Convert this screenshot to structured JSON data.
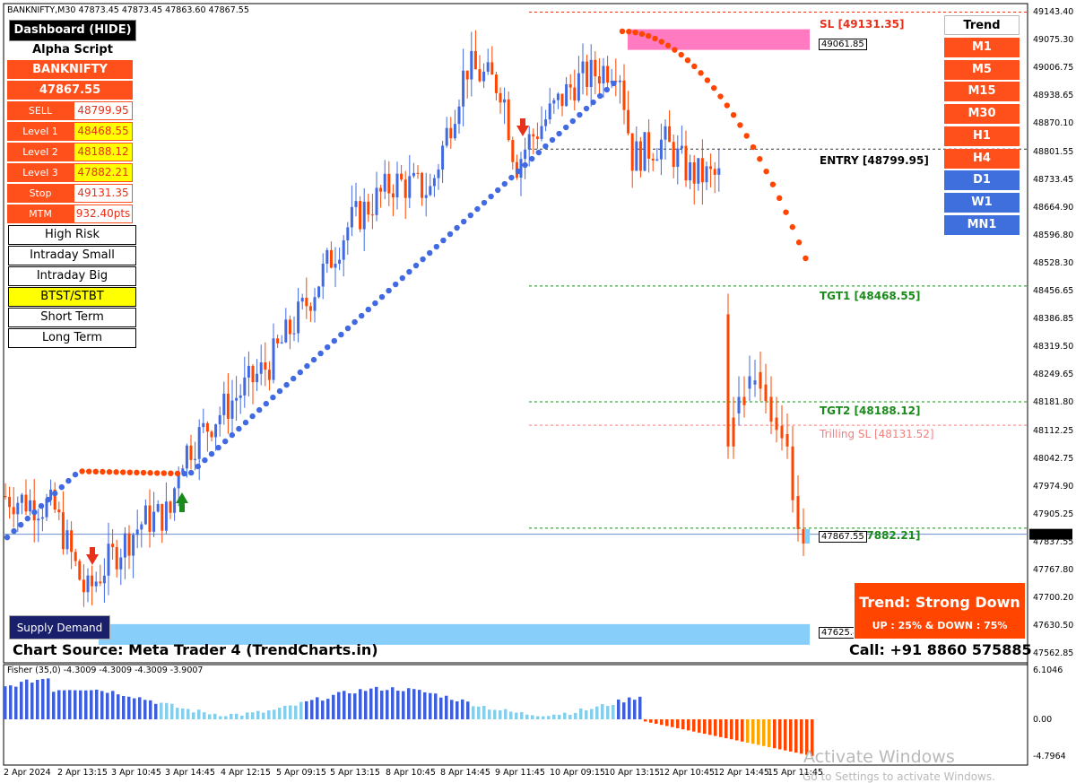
{
  "header": {
    "title": "BANKNIFTY,M30  47873.45 47873.45 47863.60 47867.55"
  },
  "dashboard": {
    "hide_button": "Dashboard (HIDE)",
    "brand": "Alpha Script",
    "symbol": "BANKNIFTY",
    "price": "47867.55",
    "rows": [
      {
        "label": "SELL",
        "value": "48799.95",
        "highlight": false
      },
      {
        "label": "Level 1",
        "value": "48468.55",
        "highlight": true
      },
      {
        "label": "Level 2",
        "value": "48188.12",
        "highlight": true
      },
      {
        "label": "Level 3",
        "value": "47882.21",
        "highlight": true
      },
      {
        "label": "Stop",
        "value": "49131.35",
        "highlight": false
      },
      {
        "label": "MTM",
        "value": "932.40pts",
        "highlight": false
      }
    ],
    "modes": [
      {
        "label": "High Risk",
        "active": false
      },
      {
        "label": "Intraday Small",
        "active": false
      },
      {
        "label": "Intraday Big",
        "active": false
      },
      {
        "label": "BTST/STBT",
        "active": true
      },
      {
        "label": "Short Term",
        "active": false
      },
      {
        "label": "Long Term",
        "active": false
      }
    ],
    "supply_demand": "Supply Demand"
  },
  "trend_panel": {
    "title": "Trend",
    "timeframes": [
      {
        "label": "M1",
        "state": "down"
      },
      {
        "label": "M5",
        "state": "down"
      },
      {
        "label": "M15",
        "state": "down"
      },
      {
        "label": "M30",
        "state": "down"
      },
      {
        "label": "H1",
        "state": "down"
      },
      {
        "label": "H4",
        "state": "down"
      },
      {
        "label": "D1",
        "state": "up"
      },
      {
        "label": "W1",
        "state": "up"
      },
      {
        "label": "MN1",
        "state": "up"
      }
    ]
  },
  "levels": {
    "sl": "SL [49131.35]",
    "entry": "ENTRY [48799.95]",
    "tgt1": "TGT1 [48468.55]",
    "tgt2": "TGT2 [48188.12]",
    "trailing_sl": "Trilling SL [48131.52]",
    "tgt3": "TGT3 [47882.21]",
    "supply_zone": "49061.85",
    "demand_zone": "47625.80",
    "current_tag": "47867.55"
  },
  "trend_box": {
    "title": "Trend: Strong Down",
    "detail": "UP : 25% & DOWN : 75%"
  },
  "footer": {
    "source": "Chart Source: Meta Trader 4 (TrendCharts.in)",
    "call": "Call: +91 8860 575885"
  },
  "watermark": {
    "line1": "Activate Windows",
    "line2": "Go to Settings to activate Windows."
  },
  "indicator": {
    "title": "Fisher (35,0) -4.3009 -4.3009 -4.3009 -3.9007"
  },
  "colors": {
    "bull": "#4169e1",
    "bear": "#ff4500",
    "dot_up": "#4169e1",
    "dot_down": "#ff4500",
    "panel_orange": "#ff4f1a",
    "panel_blue": "#3f6fdc",
    "fisher_up": "#3f5fd8",
    "fisher_up_light": "#87ceeb",
    "fisher_down": "#ff4500",
    "fisher_down_light": "#ffa500",
    "supply": "#ff7ac0",
    "demand": "#87cefa"
  },
  "chart_data": {
    "type": "candlestick",
    "symbol": "BANKNIFTY",
    "timeframe": "M30",
    "price_axis": [
      "49143.40",
      "49075.30",
      "49006.75",
      "48938.65",
      "48870.10",
      "48801.55",
      "48733.45",
      "48664.90",
      "48596.80",
      "48528.30",
      "48456.65",
      "48386.85",
      "48319.50",
      "48249.65",
      "48181.80",
      "48112.25",
      "48042.75",
      "47974.90",
      "47905.25",
      "47837.55",
      "47767.80",
      "47700.20",
      "47630.50",
      "47562.85"
    ],
    "date_axis": [
      "2 Apr 2024",
      "2 Apr 13:15",
      "3 Apr 10:45",
      "3 Apr 14:45",
      "4 Apr 12:15",
      "5 Apr 09:15",
      "5 Apr 13:15",
      "8 Apr 10:45",
      "8 Apr 14:45",
      "9 Apr 11:45",
      "10 Apr 09:15",
      "10 Apr 13:15",
      "12 Apr 10:45",
      "12 Apr 14:45",
      "15 Apr 11:45"
    ],
    "fisher_axis": [
      "6.1046",
      "0.00",
      "-4.7964"
    ],
    "ylim": [
      47562.85,
      49143.4
    ],
    "last_price": 47867.55,
    "levels": {
      "sl": 49131.35,
      "entry": 48799.95,
      "tgt1": 48468.55,
      "tgt2": 48188.12,
      "trailing_sl": 48131.52,
      "tgt3": 47882.21,
      "supply": 49061.85,
      "demand": 47625.8
    }
  }
}
